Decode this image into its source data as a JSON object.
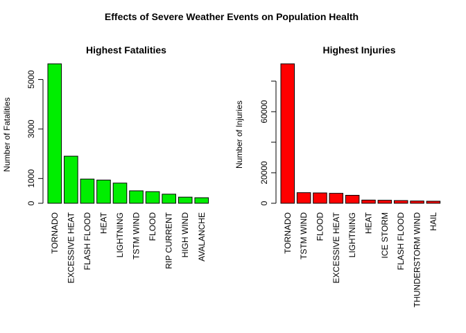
{
  "title": "Effects of Severe Weather Events on Population Health",
  "chart_data": [
    {
      "type": "bar",
      "title": "Highest Fatalities",
      "xlabel": "",
      "ylabel": "Number of Fatalities",
      "color": "#00ee00",
      "categories": [
        "TORNADO",
        "EXCESSIVE HEAT",
        "FLASH FLOOD",
        "HEAT",
        "LIGHTNING",
        "TSTM WIND",
        "FLOOD",
        "RIP CURRENT",
        "HIGH WIND",
        "AVALANCHE"
      ],
      "values": [
        5633,
        1903,
        978,
        937,
        816,
        504,
        470,
        368,
        248,
        224
      ],
      "yticks": [
        0,
        1000,
        3000,
        5000
      ],
      "ylim": [
        0,
        5633
      ]
    },
    {
      "type": "bar",
      "title": "Highest Injuries",
      "xlabel": "",
      "ylabel": "Number of Injuries",
      "color": "#ff0000",
      "categories": [
        "TORNADO",
        "TSTM WIND",
        "FLOOD",
        "EXCESSIVE HEAT",
        "LIGHTNING",
        "HEAT",
        "ICE STORM",
        "FLASH FLOOD",
        "THUNDERSTORM WIND",
        "HAIL"
      ],
      "values": [
        91346,
        6957,
        6789,
        6525,
        5230,
        2100,
        1975,
        1777,
        1488,
        1361
      ],
      "yticks": [
        0,
        20000,
        40000,
        60000,
        80000
      ],
      "ytick_labels": [
        "0",
        "20000",
        "",
        "60000",
        ""
      ],
      "ylim": [
        0,
        91346
      ]
    }
  ]
}
